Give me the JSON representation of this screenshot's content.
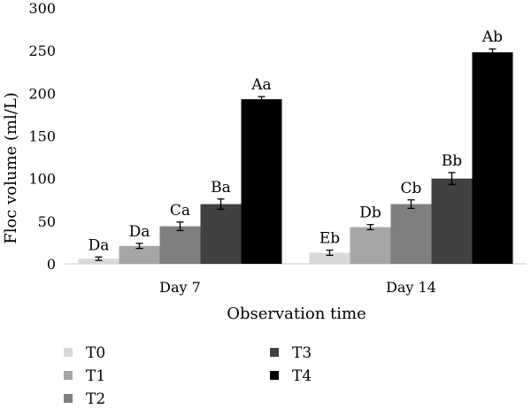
{
  "chart_data": {
    "type": "bar",
    "title": "",
    "xlabel": "Observation time",
    "ylabel": "Floc volume (ml/L)",
    "ylim": [
      0,
      300
    ],
    "yticks": [
      0,
      50,
      100,
      150,
      200,
      250,
      300
    ],
    "categories": [
      "Day 7",
      "Day 14"
    ],
    "grid": false,
    "legend_position": "bottom",
    "series": [
      {
        "name": "T0",
        "color": "#d9d9d9",
        "values": [
          6,
          13
        ],
        "errors": [
          2,
          3
        ],
        "labels": [
          "Da",
          "Eb"
        ]
      },
      {
        "name": "T1",
        "color": "#a6a6a6",
        "values": [
          21,
          43
        ],
        "errors": [
          3,
          3
        ],
        "labels": [
          "Da",
          "Db"
        ]
      },
      {
        "name": "T2",
        "color": "#7f7f7f",
        "values": [
          44,
          70
        ],
        "errors": [
          5,
          5
        ],
        "labels": [
          "Ca",
          "Cb"
        ]
      },
      {
        "name": "T3",
        "color": "#404040",
        "values": [
          70,
          100
        ],
        "errors": [
          6,
          7
        ],
        "labels": [
          "Ba",
          "Bb"
        ]
      },
      {
        "name": "T4",
        "color": "#000000",
        "values": [
          193,
          248
        ],
        "errors": [
          3,
          4
        ],
        "labels": [
          "Aa",
          "Ab"
        ]
      }
    ]
  }
}
